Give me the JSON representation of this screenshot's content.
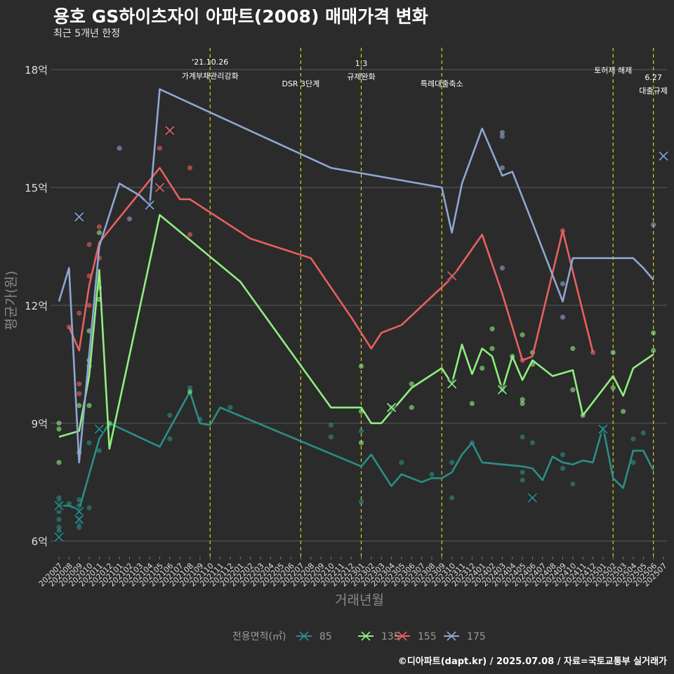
{
  "title": "용호 GS하이츠자이 아파트(2008) 매매가격 변화",
  "subtitle": "최근 5개년 한정",
  "caption": "©디아파트(dapt.kr) / 2025.07.08 / 자료=국토교통부 실거래가",
  "chart_data": {
    "type": "line",
    "xlabel": "거래년월",
    "ylabel": "평균가(원)",
    "x": [
      "202007",
      "202008",
      "202009",
      "202010",
      "202011",
      "202012",
      "202101",
      "202102",
      "202103",
      "202104",
      "202105",
      "202106",
      "202107",
      "202108",
      "202109",
      "202110",
      "202111",
      "202112",
      "202201",
      "202202",
      "202203",
      "202204",
      "202205",
      "202206",
      "202207",
      "202208",
      "202209",
      "202210",
      "202211",
      "202212",
      "202301",
      "202302",
      "202303",
      "202304",
      "202305",
      "202306",
      "202307",
      "202308",
      "202309",
      "202310",
      "202311",
      "202312",
      "202401",
      "202402",
      "202403",
      "202404",
      "202405",
      "202406",
      "202407",
      "202408",
      "202409",
      "202410",
      "202411",
      "202412",
      "202501",
      "202502",
      "202503",
      "202504",
      "202505",
      "202506",
      "202507"
    ],
    "y_ticks": [
      {
        "value": 6,
        "label": "6억"
      },
      {
        "value": 9,
        "label": "9억"
      },
      {
        "value": 12,
        "label": "12억"
      },
      {
        "value": 15,
        "label": "15억"
      },
      {
        "value": 18,
        "label": "18억"
      }
    ],
    "ylim": [
      5.6,
      18.7
    ],
    "grid": true,
    "legend": {
      "title": "전용면적(㎡)",
      "position": "bottom"
    },
    "series": [
      {
        "name": "85",
        "color": "#2a8f86",
        "line": [
          [
            "202007",
            6.9
          ],
          [
            "202008",
            6.9
          ],
          [
            "202009",
            6.8
          ],
          [
            "202011",
            8.6
          ],
          [
            "202012",
            9.0
          ],
          [
            "202105",
            8.4
          ],
          [
            "202108",
            9.8
          ],
          [
            "202109",
            9.0
          ],
          [
            "202110",
            8.95
          ],
          [
            "202111",
            9.4
          ],
          [
            "202301",
            7.9
          ],
          [
            "202302",
            8.2
          ],
          [
            "202304",
            7.4
          ],
          [
            "202305",
            7.7
          ],
          [
            "202307",
            7.5
          ],
          [
            "202308",
            7.6
          ],
          [
            "202309",
            7.6
          ],
          [
            "202310",
            7.75
          ],
          [
            "202311",
            8.2
          ],
          [
            "202312",
            8.5
          ],
          [
            "202401",
            8.0
          ],
          [
            "202405",
            7.9
          ],
          [
            "202406",
            7.85
          ],
          [
            "202407",
            7.55
          ],
          [
            "202408",
            8.15
          ],
          [
            "202409",
            8.0
          ],
          [
            "202410",
            7.95
          ],
          [
            "202411",
            8.05
          ],
          [
            "202412",
            8.0
          ],
          [
            "202501",
            8.9
          ],
          [
            "202502",
            7.6
          ],
          [
            "202503",
            7.35
          ],
          [
            "202504",
            8.3
          ],
          [
            "202505",
            8.3
          ],
          [
            "202506",
            7.8
          ]
        ],
        "points": [
          [
            "202007",
            7.1
          ],
          [
            "202007",
            7.0
          ],
          [
            "202007",
            6.75
          ],
          [
            "202007",
            6.55
          ],
          [
            "202007",
            6.35
          ],
          [
            "202007",
            6.25
          ],
          [
            "202008",
            6.95
          ],
          [
            "202009",
            7.05
          ],
          [
            "202009",
            6.9
          ],
          [
            "202009",
            6.6
          ],
          [
            "202009",
            6.45
          ],
          [
            "202009",
            6.35
          ],
          [
            "202010",
            6.85
          ],
          [
            "202010",
            8.5
          ],
          [
            "202011",
            8.3
          ],
          [
            "202012",
            8.95
          ],
          [
            "202106",
            8.6
          ],
          [
            "202106",
            9.2
          ],
          [
            "202108",
            9.9
          ],
          [
            "202109",
            9.1
          ],
          [
            "202112",
            9.4
          ],
          [
            "202210",
            8.95
          ],
          [
            "202210",
            8.65
          ],
          [
            "202301",
            8.8
          ],
          [
            "202301",
            7.0
          ],
          [
            "202305",
            8.0
          ],
          [
            "202308",
            7.7
          ],
          [
            "202310",
            8.0
          ],
          [
            "202310",
            7.1
          ],
          [
            "202312",
            8.5
          ],
          [
            "202405",
            8.65
          ],
          [
            "202405",
            7.75
          ],
          [
            "202405",
            7.55
          ],
          [
            "202406",
            8.5
          ],
          [
            "202409",
            8.2
          ],
          [
            "202409",
            7.85
          ],
          [
            "202410",
            7.45
          ],
          [
            "202504",
            8.6
          ],
          [
            "202504",
            8.0
          ],
          [
            "202505",
            8.75
          ]
        ],
        "crosses": [
          [
            "202007",
            6.9
          ],
          [
            "202007",
            6.1
          ],
          [
            "202009",
            6.75
          ],
          [
            "202009",
            6.55
          ],
          [
            "202011",
            8.85
          ],
          [
            "202406",
            7.1
          ],
          [
            "202501",
            8.85
          ]
        ]
      },
      {
        "name": "135",
        "color": "#90ee80",
        "line": [
          [
            "202007",
            8.65
          ],
          [
            "202009",
            8.8
          ],
          [
            "202010",
            10.2
          ],
          [
            "202011",
            12.9
          ],
          [
            "202012",
            8.35
          ],
          [
            "202105",
            14.3
          ],
          [
            "202201",
            12.6
          ],
          [
            "202210",
            9.4
          ],
          [
            "202301",
            9.4
          ],
          [
            "202302",
            9.0
          ],
          [
            "202303",
            9.0
          ],
          [
            "202304",
            9.3
          ],
          [
            "202306",
            9.9
          ],
          [
            "202309",
            10.4
          ],
          [
            "202310",
            10.0
          ],
          [
            "202311",
            11.0
          ],
          [
            "202312",
            10.25
          ],
          [
            "202401",
            10.9
          ],
          [
            "202402",
            10.7
          ],
          [
            "202403",
            9.85
          ],
          [
            "202404",
            10.7
          ],
          [
            "202405",
            10.1
          ],
          [
            "202406",
            10.6
          ],
          [
            "202408",
            10.2
          ],
          [
            "202410",
            10.35
          ],
          [
            "202411",
            9.2
          ],
          [
            "202502",
            10.2
          ],
          [
            "202503",
            9.7
          ],
          [
            "202504",
            10.4
          ],
          [
            "202506",
            10.75
          ]
        ],
        "points": [
          [
            "202007",
            9.0
          ],
          [
            "202007",
            8.85
          ],
          [
            "202007",
            8.0
          ],
          [
            "202009",
            9.45
          ],
          [
            "202010",
            11.35
          ],
          [
            "202010",
            10.6
          ],
          [
            "202010",
            10.45
          ],
          [
            "202010",
            9.45
          ],
          [
            "202011",
            13.85
          ],
          [
            "202011",
            12.15
          ],
          [
            "202011",
            12.45
          ],
          [
            "202012",
            9.0
          ],
          [
            "202108",
            9.8
          ],
          [
            "202301",
            10.45
          ],
          [
            "202301",
            9.3
          ],
          [
            "202301",
            8.5
          ],
          [
            "202304",
            9.4
          ],
          [
            "202306",
            10.0
          ],
          [
            "202306",
            9.4
          ],
          [
            "202312",
            9.5
          ],
          [
            "202401",
            10.4
          ],
          [
            "202402",
            10.9
          ],
          [
            "202402",
            11.4
          ],
          [
            "202403",
            9.85
          ],
          [
            "202404",
            10.7
          ],
          [
            "202405",
            11.25
          ],
          [
            "202405",
            9.6
          ],
          [
            "202405",
            9.5
          ],
          [
            "202406",
            10.8
          ],
          [
            "202406",
            10.5
          ],
          [
            "202410",
            10.9
          ],
          [
            "202410",
            9.85
          ],
          [
            "202411",
            9.2
          ],
          [
            "202502",
            10.8
          ],
          [
            "202502",
            9.9
          ],
          [
            "202503",
            9.3
          ],
          [
            "202506",
            10.85
          ],
          [
            "202506",
            11.3
          ]
        ],
        "crosses": [
          [
            "202304",
            9.4
          ],
          [
            "202310",
            10.0
          ],
          [
            "202403",
            9.85
          ]
        ]
      },
      {
        "name": "155",
        "color": "#e8615f",
        "line": [
          [
            "202008",
            11.45
          ],
          [
            "202009",
            10.85
          ],
          [
            "202010",
            12.5
          ],
          [
            "202011",
            13.6
          ],
          [
            "202105",
            15.5
          ],
          [
            "202107",
            14.7
          ],
          [
            "202108",
            14.7
          ],
          [
            "202202",
            13.7
          ],
          [
            "202208",
            13.2
          ],
          [
            "202212",
            11.7
          ],
          [
            "202302",
            10.9
          ],
          [
            "202303",
            11.3
          ],
          [
            "202305",
            11.5
          ],
          [
            "202310",
            12.7
          ],
          [
            "202401",
            13.8
          ],
          [
            "202403",
            12.3
          ],
          [
            "202405",
            10.6
          ],
          [
            "202406",
            10.7
          ],
          [
            "202409",
            13.9
          ],
          [
            "202412",
            10.8
          ]
        ],
        "points": [
          [
            "202008",
            11.45
          ],
          [
            "202009",
            11.8
          ],
          [
            "202009",
            10.0
          ],
          [
            "202009",
            9.75
          ],
          [
            "202010",
            12.75
          ],
          [
            "202010",
            13.55
          ],
          [
            "202010",
            12.0
          ],
          [
            "202011",
            14.0
          ],
          [
            "202011",
            13.2
          ],
          [
            "202105",
            16.0
          ],
          [
            "202108",
            13.8
          ],
          [
            "202108",
            15.5
          ],
          [
            "202405",
            10.6
          ],
          [
            "202409",
            13.9
          ],
          [
            "202412",
            10.8
          ]
        ],
        "crosses": [
          [
            "202105",
            15.0
          ],
          [
            "202106",
            16.45
          ],
          [
            "202310",
            12.75
          ]
        ]
      },
      {
        "name": "175",
        "color": "#8ea7d1",
        "line": [
          [
            "202007",
            12.1
          ],
          [
            "202008",
            12.95
          ],
          [
            "202009",
            8.0
          ],
          [
            "202011",
            13.5
          ],
          [
            "202101",
            15.1
          ],
          [
            "202103",
            14.8
          ],
          [
            "202104",
            14.55
          ],
          [
            "202105",
            17.5
          ],
          [
            "202210",
            15.5
          ],
          [
            "202309",
            15.0
          ],
          [
            "202310",
            13.85
          ],
          [
            "202311",
            15.1
          ],
          [
            "202401",
            16.5
          ],
          [
            "202403",
            15.3
          ],
          [
            "202404",
            15.4
          ],
          [
            "202406",
            14.1
          ],
          [
            "202409",
            12.1
          ],
          [
            "202410",
            13.2
          ],
          [
            "202504",
            13.2
          ],
          [
            "202505",
            12.95
          ],
          [
            "202506",
            12.65
          ]
        ],
        "points": [
          [
            "202009",
            8.25
          ],
          [
            "202101",
            16.0
          ],
          [
            "202102",
            14.2
          ],
          [
            "202403",
            16.4
          ],
          [
            "202403",
            16.3
          ],
          [
            "202403",
            15.5
          ],
          [
            "202403",
            12.95
          ],
          [
            "202409",
            12.55
          ],
          [
            "202409",
            11.7
          ],
          [
            "202506",
            14.05
          ]
        ],
        "crosses": [
          [
            "202009",
            14.25
          ],
          [
            "202104",
            14.55
          ],
          [
            "202507",
            15.8
          ]
        ]
      }
    ],
    "vlines": [
      {
        "x": "202110",
        "label": "'21.10.26\n가계부채관리강화"
      },
      {
        "x": "202207",
        "label": "DSR 3단계"
      },
      {
        "x": "202301",
        "label": "1.3\n규제완화"
      },
      {
        "x": "202309",
        "label": "특례대출축소"
      },
      {
        "x": "202502",
        "label": "토허제 해제"
      },
      {
        "x": "202506",
        "label": "6.27\n대출규제"
      }
    ]
  }
}
